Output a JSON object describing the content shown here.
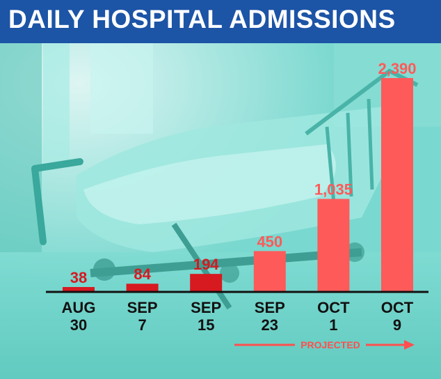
{
  "header": {
    "title": "DAILY HOSPITAL ADMISSIONS"
  },
  "colors": {
    "title_bg": "#1c54a6",
    "background_tint": "#6fd2c8",
    "actual_bar": "#d71920",
    "projected_bar": "#ff5a5a",
    "axis": "#111111"
  },
  "chart_data": {
    "type": "bar",
    "title": "DAILY HOSPITAL ADMISSIONS",
    "categories": [
      [
        "AUG",
        "30"
      ],
      [
        "SEP",
        "7"
      ],
      [
        "SEP",
        "15"
      ],
      [
        "SEP",
        "23"
      ],
      [
        "OCT",
        "1"
      ],
      [
        "OCT",
        "9"
      ]
    ],
    "values": [
      38,
      84,
      194,
      450,
      1035,
      2390
    ],
    "value_labels": [
      "38",
      "84",
      "194",
      "450",
      "1,035",
      "2,390"
    ],
    "projected": [
      false,
      false,
      false,
      true,
      true,
      true
    ],
    "projected_label": "PROJECTED",
    "ylim": [
      0,
      2390
    ],
    "grid": false,
    "legend": "none"
  }
}
